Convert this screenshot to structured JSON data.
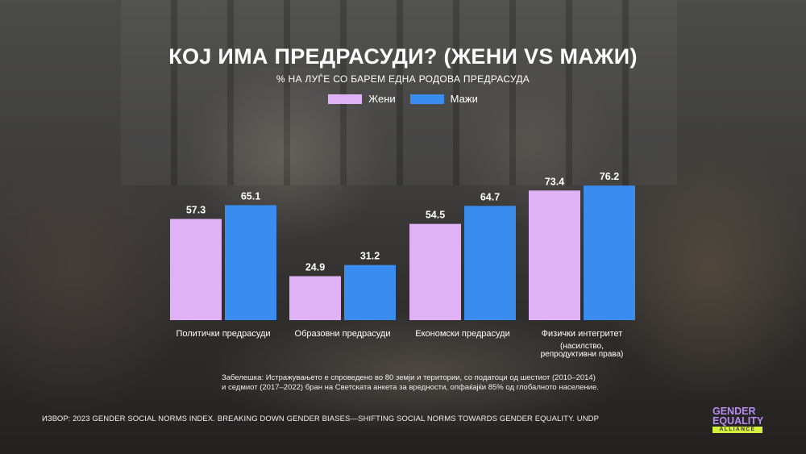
{
  "colors": {
    "women": "#dfb1f5",
    "men": "#3a8cee",
    "logo_text": "#b98bf2",
    "logo_band": "#d5f03c"
  },
  "chart_data": {
    "type": "bar",
    "title": "КОЈ ИМА ПРЕДРАСУДИ? (ЖЕНИ VS МАЖИ)",
    "subtitle": "% НА ЛУЃЕ СО БАРЕМ ЕДНА РОДОВА ПРЕДРАСУДА",
    "categories": [
      [
        "Политички предрасуди"
      ],
      [
        "Образовни предрасуди"
      ],
      [
        "Економски предрасуди"
      ],
      [
        "Физички интегритет",
        "(насилство,",
        "репродуктивни права)"
      ]
    ],
    "series": [
      {
        "name": "Жени",
        "values": [
          57.3,
          24.9,
          54.5,
          73.4
        ]
      },
      {
        "name": "Мажи",
        "values": [
          65.1,
          31.2,
          64.7,
          76.2
        ]
      }
    ],
    "ylim": [
      0,
      100
    ],
    "grid": false,
    "legend_position": "top-center",
    "data_labels": true
  },
  "note": "Забелешка: Истражувањето е спроведено во 80 земји и територии, со податоци од шестиот (2010–2014) и седмиот (2017–2022) бран на Светската анкета за вредности, опфаќајќи 85% од глобалното население.",
  "source": "ИЗВОР: 2023 GENDER SOCIAL NORMS INDEX. BREAKING DOWN GENDER BIASES—SHIFTING SOCIAL NORMS TOWARDS GENDER EQUALITY. UNDP",
  "logo": {
    "line1": "GENDER",
    "line2": "EQUALITY",
    "line3": "ALLIANCE"
  }
}
